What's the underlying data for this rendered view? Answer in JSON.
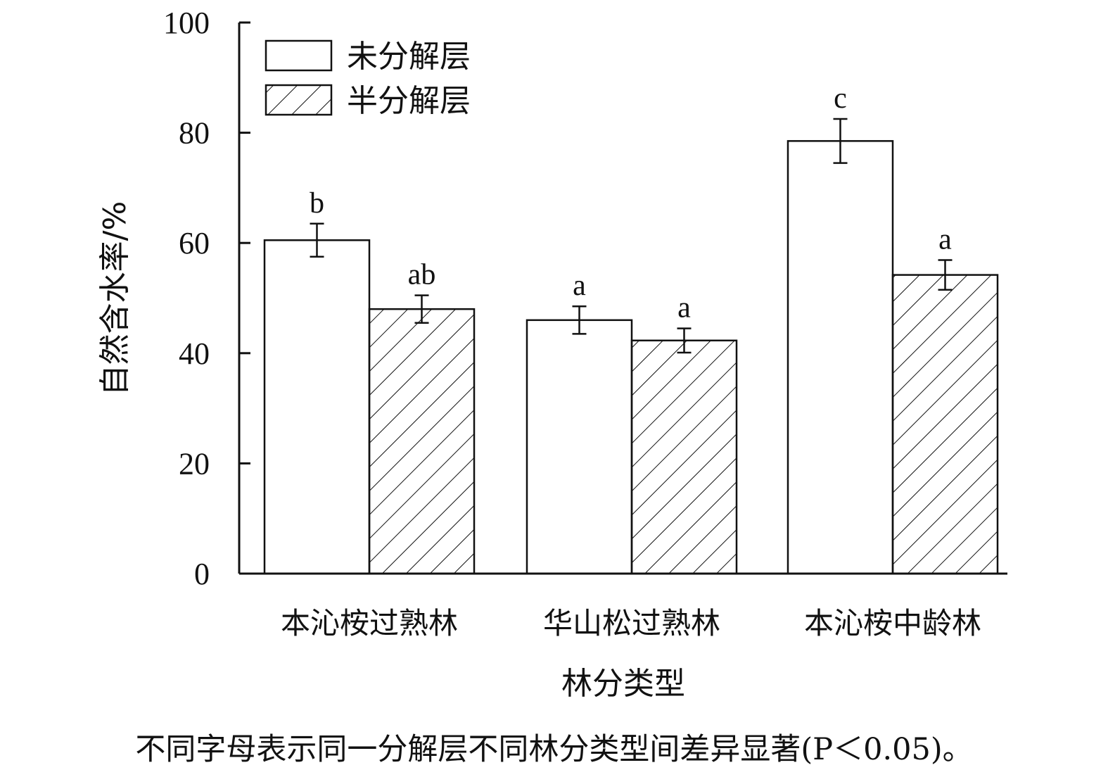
{
  "chart_data": {
    "type": "bar",
    "categories": [
      "本沁桉过熟林",
      "华山松过熟林",
      "本沁桉中龄林"
    ],
    "series": [
      {
        "name": "未分解层",
        "pattern": "none",
        "values": [
          60.5,
          46.0,
          78.5
        ],
        "errors": [
          3.0,
          2.5,
          4.0
        ],
        "letters": [
          "b",
          "a",
          "c"
        ]
      },
      {
        "name": "半分解层",
        "pattern": "diagonal-hatch",
        "values": [
          48.0,
          42.3,
          54.2
        ],
        "errors": [
          2.5,
          2.2,
          2.7
        ],
        "letters": [
          "ab",
          "a",
          "a"
        ]
      }
    ],
    "xlabel": "林分类型",
    "ylabel": "自然含水率/%",
    "ylim": [
      0,
      100
    ],
    "yticks": [
      0,
      20,
      40,
      60,
      80,
      100
    ],
    "grid": false,
    "legend_position": "top-left",
    "colors": {
      "bar_fill": "#ffffff",
      "line": "#111111"
    }
  },
  "footnote": "不同字母表示同一分解层不同林分类型间差异显著(P＜0.05)。"
}
